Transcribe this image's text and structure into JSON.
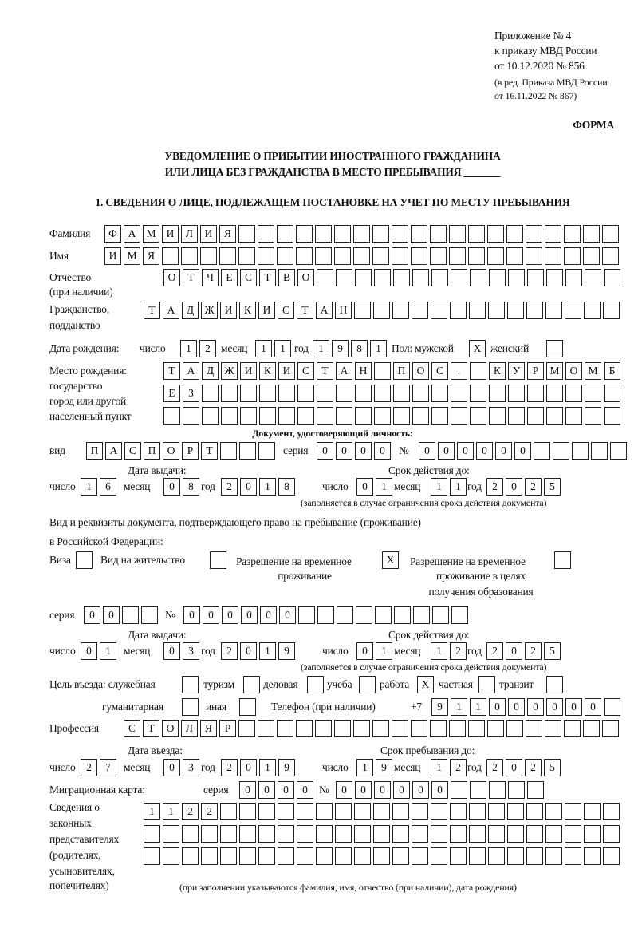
{
  "header": {
    "appendix": "Приложение № 4",
    "order_ref": "к приказу МВД России",
    "order_date": "от 10.12.2020 № 856",
    "edition_1": "(в ред. Приказа МВД России",
    "edition_2": "от 16.11.2022 № 867)",
    "form_label": "ФОРМА",
    "title_1": "УВЕДОМЛЕНИЕ О ПРИБЫТИИ ИНОСТРАННОГО ГРАЖДАНИНА",
    "title_2": "ИЛИ ЛИЦА БЕЗ ГРАЖДАНСТВА В МЕСТО ПРЕБЫВАНИЯ _______",
    "section_1": "1. СВЕДЕНИЯ О ЛИЦЕ, ПОДЛЕЖАЩЕМ ПОСТАНОВКЕ НА УЧЕТ ПО МЕСТУ ПРЕБЫВАНИЯ"
  },
  "labels": {
    "surname": "Фамилия",
    "name": "Имя",
    "patronymic": "Отчество",
    "patronymic_note": "(при наличии)",
    "citizenship": "Гражданство,",
    "citizenship_2": "подданство",
    "birth_date": "Дата рождения:",
    "day": "число",
    "month": "месяц",
    "year": "год",
    "sex": "Пол: мужской",
    "female": "женский",
    "birthplace": "Место рождения:",
    "birthplace_2": "государство",
    "birthplace_3": "город или другой",
    "birthplace_4": "населенный пункт",
    "id_doc": "Документ, удостоверяющий личность:",
    "kind": "вид",
    "series": "серия",
    "number": "№",
    "issue_date": "Дата выдачи:",
    "valid_until": "Срок действия до:",
    "validity_note": "(заполняется в случае ограничения срока действия документа)",
    "permit_1": "Вид и реквизиты документа, подтверждающего право на пребывание (проживание)",
    "permit_2": "в Российской Федерации:",
    "visa": "Виза",
    "residence": "Вид на жительство",
    "temp_res_1": "Разрешение на временное",
    "temp_res_2": "проживание",
    "temp_edu_1": "Разрешение на временное",
    "temp_edu_2": "проживание в целях",
    "temp_edu_3": "получения образования",
    "purpose": "Цель въезда: служебная",
    "tourism": "туризм",
    "business": "деловая",
    "study": "учеба",
    "work": "работа",
    "private": "частная",
    "transit": "транзит",
    "humanitarian": "гуманитарная",
    "other": "иная",
    "phone": "Телефон (при наличии)",
    "phone_prefix": "+7",
    "profession": "Профессия",
    "entry_date": "Дата въезда:",
    "stay_until": "Срок пребывания до:",
    "migration_card": "Миграционная карта:",
    "reps_1": "Сведения о",
    "reps_2": "законных",
    "reps_3": "представителях",
    "reps_4": "(родителях,",
    "reps_5": "усыновителях,",
    "reps_6": "попечителях)",
    "reps_note": "(при заполнении указываются фамилия, имя, отчество (при наличии), дата рождения)"
  },
  "fields": {
    "surname": "ФАМИЛИЯ",
    "name": "ИМЯ",
    "patronymic": "ОТЧЕСТВО",
    "citizenship": "ТАДЖИКИСТАН",
    "birth_day": "12",
    "birth_month": "11",
    "birth_year": "1981",
    "sex_male": "X",
    "sex_female": "",
    "birthplace_1": "ТАДЖИКИСТАН ПОС. КУРМОМБ",
    "birthplace_2": "ЕЗ",
    "birthplace_3": "",
    "doc_kind": "ПАСПОРТ",
    "doc_series": "0000",
    "doc_number": "000000",
    "doc_issue_day": "16",
    "doc_issue_month": "08",
    "doc_issue_year": "2018",
    "doc_valid_day": "01",
    "doc_valid_month": "11",
    "doc_valid_year": "2025",
    "visa": "",
    "residence": "",
    "temp_res": "X",
    "temp_edu": "",
    "permit_series": "00",
    "permit_number": "000000",
    "permit_issue_day": "01",
    "permit_issue_month": "03",
    "permit_issue_year": "2019",
    "permit_valid_day": "01",
    "permit_valid_month": "12",
    "permit_valid_year": "2025",
    "p_service": "",
    "p_tourism": "",
    "p_business": "",
    "p_study": "",
    "p_work": "X",
    "p_private": "",
    "p_transit": "",
    "p_humanitarian": "",
    "p_other": "",
    "phone": "911000000",
    "profession": "СТОЛЯР",
    "entry_day": "27",
    "entry_month": "03",
    "entry_year": "2019",
    "stay_day": "19",
    "stay_month": "12",
    "stay_year": "2025",
    "mc_series": "0000",
    "mc_number": "000000",
    "reps_1": "1122",
    "reps_2": "",
    "reps_3": ""
  }
}
